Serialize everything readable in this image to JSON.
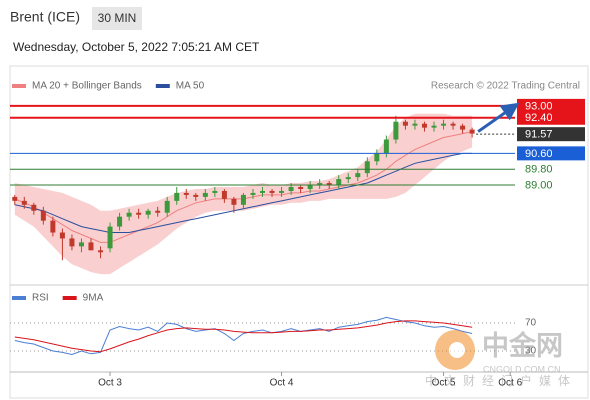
{
  "header": {
    "title": "Brent (ICE)",
    "interval": "30 MIN",
    "timestamp": "Wednesday, October 5, 2022 7:05:21 AM CET"
  },
  "chart_data": [
    {
      "type": "candlestick",
      "copyright": "Research © 2022 Trading Central",
      "ohlc": {
        "up_color": "#3c9a3c",
        "down_color": "#c0392b",
        "open": [
          88.4,
          88.2,
          88.0,
          87.7,
          87.2,
          86.6,
          86.3,
          85.9,
          86.1,
          85.7,
          85.8,
          86.9,
          87.4,
          87.6,
          87.5,
          87.7,
          87.6,
          88.2,
          88.6,
          88.5,
          88.4,
          88.6,
          88.7,
          88.3,
          88.0,
          88.5,
          88.6,
          88.7,
          88.6,
          88.7,
          88.9,
          88.8,
          89.0,
          89.1,
          89.0,
          89.3,
          89.4,
          89.6,
          90.2,
          90.6,
          91.3,
          92.2,
          92.0,
          92.1,
          91.9,
          92.0,
          92.1,
          92.0,
          91.8
        ],
        "high": [
          88.5,
          88.4,
          88.1,
          87.9,
          87.4,
          86.8,
          86.5,
          86.3,
          86.3,
          85.9,
          87.1,
          87.6,
          87.8,
          87.8,
          87.8,
          87.9,
          88.4,
          88.9,
          88.8,
          88.6,
          88.8,
          88.9,
          88.8,
          88.4,
          88.6,
          88.8,
          88.9,
          88.8,
          88.9,
          89.1,
          89.0,
          89.2,
          89.3,
          89.2,
          89.5,
          89.6,
          89.8,
          90.4,
          90.8,
          91.5,
          92.5,
          92.3,
          92.3,
          92.2,
          92.2,
          92.3,
          92.2,
          92.1,
          91.9
        ],
        "low": [
          88.0,
          87.8,
          87.5,
          87.0,
          86.4,
          85.2,
          85.7,
          85.6,
          85.8,
          85.3,
          85.6,
          86.7,
          87.2,
          87.3,
          87.3,
          87.4,
          87.4,
          88.0,
          88.3,
          88.2,
          88.2,
          88.4,
          88.1,
          87.6,
          87.8,
          88.3,
          88.4,
          88.4,
          88.4,
          88.5,
          88.6,
          88.6,
          88.8,
          88.8,
          88.8,
          89.1,
          89.2,
          89.4,
          90.0,
          90.4,
          91.1,
          91.8,
          91.8,
          91.7,
          91.7,
          91.8,
          91.8,
          91.6,
          91.4
        ],
        "close": [
          88.2,
          88.0,
          87.7,
          87.2,
          86.6,
          86.3,
          85.9,
          86.1,
          85.7,
          85.6,
          86.9,
          87.4,
          87.6,
          87.5,
          87.7,
          87.6,
          88.2,
          88.6,
          88.5,
          88.4,
          88.6,
          88.7,
          88.3,
          88.0,
          88.5,
          88.6,
          88.7,
          88.6,
          88.7,
          88.9,
          88.8,
          89.0,
          89.1,
          89.0,
          89.3,
          89.4,
          89.6,
          90.2,
          90.6,
          91.3,
          92.2,
          92.0,
          92.1,
          91.9,
          92.0,
          92.1,
          92.0,
          91.8,
          91.6
        ]
      },
      "band_color": "#f9cfcf",
      "series": [
        {
          "name": "MA 20 + Bollinger Bands",
          "color": "#f08080",
          "values": [
            88.3,
            88.1,
            87.9,
            87.6,
            87.3,
            87.0,
            86.7,
            86.5,
            86.3,
            86.1,
            86.1,
            86.3,
            86.5,
            86.7,
            86.9,
            87.1,
            87.4,
            87.7,
            87.9,
            88.1,
            88.2,
            88.3,
            88.3,
            88.3,
            88.3,
            88.4,
            88.5,
            88.5,
            88.5,
            88.6,
            88.6,
            88.7,
            88.7,
            88.8,
            88.9,
            89.0,
            89.1,
            89.3,
            89.5,
            89.8,
            90.2,
            90.5,
            90.8,
            91.0,
            91.2,
            91.4,
            91.5,
            91.6,
            91.7
          ],
          "upper": [
            89.1,
            89.0,
            88.9,
            88.8,
            88.7,
            88.6,
            88.4,
            88.2,
            88.0,
            87.7,
            87.7,
            87.8,
            87.9,
            88.0,
            88.1,
            88.2,
            88.4,
            88.6,
            88.7,
            88.8,
            88.8,
            88.9,
            88.9,
            88.9,
            88.9,
            89.0,
            89.1,
            89.0,
            89.0,
            89.1,
            89.1,
            89.2,
            89.2,
            89.3,
            89.5,
            89.7,
            89.9,
            90.3,
            90.7,
            91.3,
            92.0,
            92.4,
            92.6,
            92.6,
            92.6,
            92.6,
            92.5,
            92.5,
            92.5
          ],
          "lower": [
            87.5,
            87.2,
            86.9,
            86.4,
            85.9,
            85.4,
            85.0,
            84.8,
            84.6,
            84.5,
            84.5,
            84.8,
            85.1,
            85.4,
            85.7,
            86.0,
            86.4,
            86.8,
            87.1,
            87.4,
            87.6,
            87.7,
            87.7,
            87.7,
            87.7,
            87.8,
            87.9,
            88.0,
            88.0,
            88.1,
            88.1,
            88.2,
            88.2,
            88.3,
            88.3,
            88.3,
            88.3,
            88.3,
            88.3,
            88.3,
            88.4,
            88.6,
            89.0,
            89.4,
            89.8,
            90.2,
            90.5,
            90.7,
            90.9
          ]
        },
        {
          "name": "MA 50",
          "color": "#2b4f9e",
          "values": [
            88.0,
            87.9,
            87.8,
            87.7,
            87.5,
            87.3,
            87.1,
            86.9,
            86.8,
            86.7,
            86.6,
            86.6,
            86.6,
            86.7,
            86.8,
            86.9,
            87.0,
            87.1,
            87.2,
            87.3,
            87.4,
            87.5,
            87.6,
            87.7,
            87.8,
            87.9,
            88.0,
            88.1,
            88.2,
            88.3,
            88.4,
            88.5,
            88.6,
            88.7,
            88.8,
            88.9,
            89.0,
            89.1,
            89.3,
            89.5,
            89.7,
            89.9,
            90.1,
            90.2,
            90.3,
            90.4,
            90.5,
            90.6,
            90.6
          ]
        }
      ],
      "levels": [
        {
          "value": 93.0,
          "label": "93.00",
          "color": "#e5141b",
          "style": "box",
          "line": "solid"
        },
        {
          "value": 92.4,
          "label": "92.40",
          "color": "#e5141b",
          "style": "box",
          "line": "solid"
        },
        {
          "value": 91.57,
          "label": "91.57",
          "color": "#333333",
          "style": "box",
          "line": "dotted"
        },
        {
          "value": 90.6,
          "label": "90.60",
          "color": "#1a5fd6",
          "style": "box",
          "line": "solid"
        },
        {
          "value": 89.8,
          "label": "89.80",
          "color": "#2e7d32",
          "style": "text",
          "line": "solid"
        },
        {
          "value": 89.0,
          "label": "89.00",
          "color": "#2e7d32",
          "style": "text",
          "line": "solid"
        }
      ],
      "arrow_color": "#2b5fb4",
      "xlim": [
        -0.5,
        52.5
      ],
      "ylim": [
        84.2,
        93.55
      ]
    },
    {
      "type": "line",
      "series": [
        {
          "name": "RSI",
          "color": "#4a7fd4",
          "values": [
            45,
            42,
            40,
            35,
            30,
            28,
            25,
            30,
            26,
            28,
            60,
            65,
            62,
            60,
            64,
            58,
            70,
            68,
            62,
            58,
            60,
            62,
            55,
            45,
            55,
            58,
            60,
            56,
            58,
            62,
            58,
            60,
            62,
            58,
            64,
            66,
            68,
            72,
            74,
            78,
            75,
            72,
            70,
            66,
            64,
            65,
            62,
            58,
            55
          ]
        },
        {
          "name": "9MA",
          "color": "#d9141b",
          "values": [
            50,
            48,
            46,
            43,
            40,
            37,
            34,
            32,
            30,
            29,
            33,
            38,
            43,
            47,
            52,
            56,
            60,
            62,
            63,
            62,
            61,
            61,
            60,
            58,
            57,
            56,
            56,
            56,
            57,
            58,
            58,
            59,
            60,
            60,
            61,
            62,
            63,
            65,
            67,
            70,
            72,
            73,
            73,
            72,
            71,
            70,
            68,
            66,
            64
          ]
        }
      ],
      "ylim": [
        0,
        100
      ],
      "yticks": [
        30,
        70
      ],
      "xlim": [
        -0.5,
        52.5
      ],
      "xticks": [
        {
          "value": 10,
          "label": "Oct 3"
        },
        {
          "value": 28,
          "label": "Oct 4"
        },
        {
          "value": 45,
          "label": "Oct 5"
        },
        {
          "value": 52,
          "label": "Oct 6"
        }
      ]
    }
  ],
  "watermark": {
    "brand": "中金网",
    "site": "CNGOLD.COM.CN",
    "slogan": "中文财经门户媒体"
  }
}
